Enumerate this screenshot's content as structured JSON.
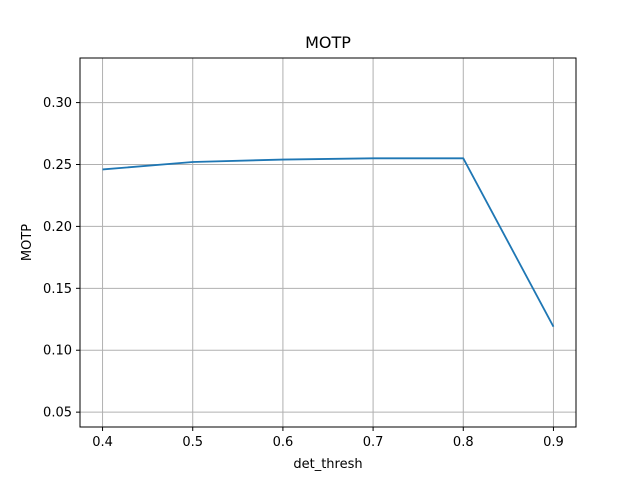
{
  "chart_data": {
    "type": "line",
    "title": "MOTP",
    "xlabel": "det_thresh",
    "ylabel": "MOTP",
    "x": [
      0.4,
      0.5,
      0.6,
      0.7,
      0.8,
      0.9
    ],
    "series": [
      {
        "name": "MOTP",
        "color": "#1f77b4",
        "values": [
          0.246,
          0.252,
          0.254,
          0.255,
          0.255,
          0.119
        ]
      }
    ],
    "xlim": [
      0.375,
      0.925
    ],
    "ylim": [
      0.038,
      0.336
    ],
    "xticks": [
      0.4,
      0.5,
      0.6,
      0.7,
      0.8,
      0.9
    ],
    "xtick_labels": [
      "0.4",
      "0.5",
      "0.6",
      "0.7",
      "0.8",
      "0.9"
    ],
    "yticks": [
      0.05,
      0.1,
      0.15,
      0.2,
      0.25,
      0.3
    ],
    "ytick_labels": [
      "0.05",
      "0.10",
      "0.15",
      "0.20",
      "0.25",
      "0.30"
    ],
    "grid": true,
    "legend": "none"
  }
}
